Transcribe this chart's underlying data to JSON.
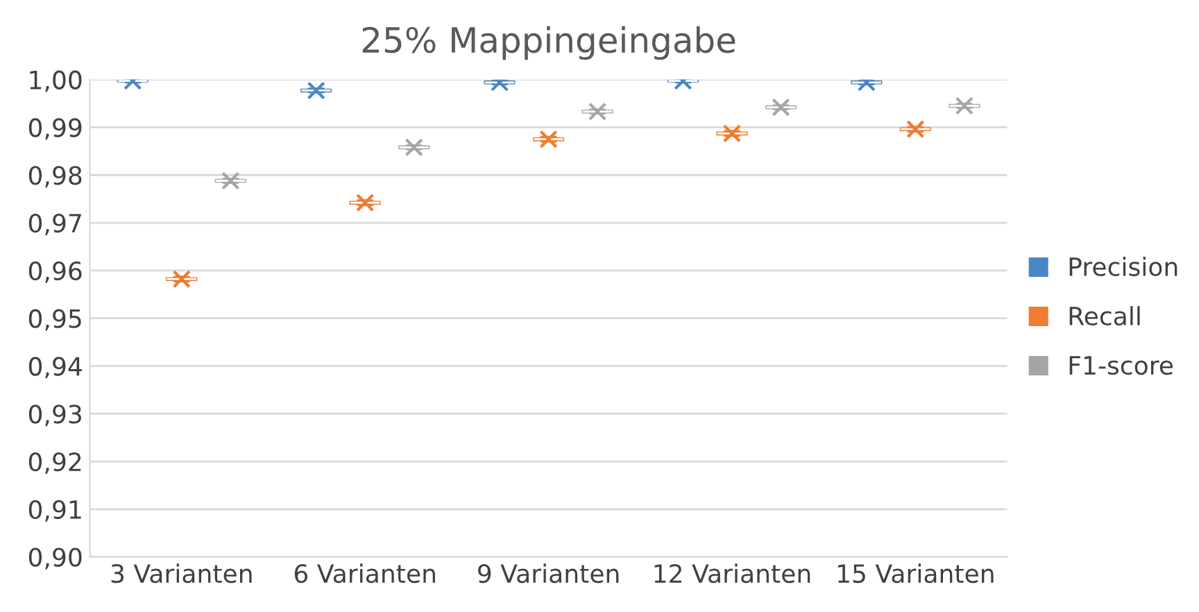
{
  "chart_data": {
    "type": "box",
    "title": "25% Mappingeingabe",
    "categories": [
      "3 Varianten",
      "6 Varianten",
      "9 Varianten",
      "12 Varianten",
      "15 Varianten"
    ],
    "series": [
      {
        "name": "Precision",
        "color": "#4a86c5",
        "boxes": [
          {
            "low": 0.9994,
            "q1": 0.9996,
            "median": 0.9997,
            "q3": 0.9998,
            "high": 1.0,
            "mean": 0.9997
          },
          {
            "low": 0.9973,
            "q1": 0.9975,
            "median": 0.9977,
            "q3": 0.9979,
            "high": 0.9981,
            "mean": 0.9977
          },
          {
            "low": 0.999,
            "q1": 0.9992,
            "median": 0.9994,
            "q3": 0.9996,
            "high": 0.9998,
            "mean": 0.9994
          },
          {
            "low": 0.9994,
            "q1": 0.9996,
            "median": 0.9997,
            "q3": 0.9998,
            "high": 1.0,
            "mean": 0.9997
          },
          {
            "low": 0.999,
            "q1": 0.9992,
            "median": 0.9994,
            "q3": 0.9996,
            "high": 0.9998,
            "mean": 0.9994
          }
        ]
      },
      {
        "name": "Recall",
        "color": "#ed7d31",
        "boxes": [
          {
            "low": 0.9577,
            "q1": 0.958,
            "median": 0.9582,
            "q3": 0.9584,
            "high": 0.9587,
            "mean": 0.9582
          },
          {
            "low": 0.9737,
            "q1": 0.974,
            "median": 0.9742,
            "q3": 0.9744,
            "high": 0.9747,
            "mean": 0.9742
          },
          {
            "low": 0.987,
            "q1": 0.9873,
            "median": 0.9875,
            "q3": 0.9877,
            "high": 0.988,
            "mean": 0.9875
          },
          {
            "low": 0.9882,
            "q1": 0.9885,
            "median": 0.9887,
            "q3": 0.9889,
            "high": 0.9892,
            "mean": 0.9887
          },
          {
            "low": 0.9891,
            "q1": 0.9894,
            "median": 0.9896,
            "q3": 0.9898,
            "high": 0.9901,
            "mean": 0.9896
          }
        ]
      },
      {
        "name": "F1-score",
        "color": "#a5a5a5",
        "boxes": [
          {
            "low": 0.9784,
            "q1": 0.9786,
            "median": 0.9788,
            "q3": 0.979,
            "high": 0.9792,
            "mean": 0.9788
          },
          {
            "low": 0.9854,
            "q1": 0.9856,
            "median": 0.9858,
            "q3": 0.986,
            "high": 0.9862,
            "mean": 0.9858
          },
          {
            "low": 0.9929,
            "q1": 0.9931,
            "median": 0.9933,
            "q3": 0.9935,
            "high": 0.9937,
            "mean": 0.9933
          },
          {
            "low": 0.9938,
            "q1": 0.994,
            "median": 0.9942,
            "q3": 0.9944,
            "high": 0.9946,
            "mean": 0.9942
          },
          {
            "low": 0.9941,
            "q1": 0.9943,
            "median": 0.9945,
            "q3": 0.9947,
            "high": 0.9949,
            "mean": 0.9945
          }
        ]
      }
    ],
    "ylim": [
      0.9,
      1.0
    ],
    "yticks": [
      {
        "value": 0.9,
        "label": "0,90"
      },
      {
        "value": 0.91,
        "label": "0,91"
      },
      {
        "value": 0.92,
        "label": "0,92"
      },
      {
        "value": 0.93,
        "label": "0,93"
      },
      {
        "value": 0.94,
        "label": "0,94"
      },
      {
        "value": 0.95,
        "label": "0,95"
      },
      {
        "value": 0.96,
        "label": "0,96"
      },
      {
        "value": 0.97,
        "label": "0,97"
      },
      {
        "value": 0.98,
        "label": "0,98"
      },
      {
        "value": 0.99,
        "label": "0,99"
      },
      {
        "value": 1.0,
        "label": "1,00"
      }
    ],
    "grid": "y",
    "legend": "right"
  }
}
